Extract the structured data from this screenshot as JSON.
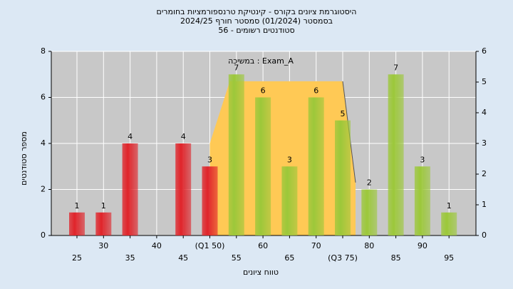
{
  "chart_data": {
    "type": "bar",
    "title": [
      "היסטוגרמת ציונים בקורס - קינטיקת טרנספורמציות בחומרים",
      "בסמסטר  (01/2024)  סמסטר חורף  2024/25",
      "סטודנטים רשומים - 56"
    ],
    "annotation": "במשיכה : Exam_A",
    "x_label": "טווח ציונים",
    "y_label": "מספר סטודנטים",
    "categories": [
      "25",
      "30",
      "35",
      "40",
      "45",
      "(Q1 50)",
      "55",
      "60",
      "65",
      "70",
      "(Q3 75)",
      "80",
      "85",
      "90",
      "95"
    ],
    "values": [
      1,
      1,
      4,
      0,
      4,
      3,
      7,
      6,
      3,
      6,
      5,
      2,
      7,
      3,
      1
    ],
    "colors": [
      "#e0242a",
      "#e0242a",
      "#e0242a",
      "#e0242a",
      "#e0242a",
      "#e0242a",
      "#9cc83a",
      "#9cc83a",
      "#9cc83a",
      "#9cc83a",
      "#9cc83a",
      "#9cc83a",
      "#9cc83a",
      "#9cc83a",
      "#9cc83a"
    ],
    "ylim": [
      0,
      8
    ],
    "yticks": [
      0,
      2,
      4,
      6,
      8
    ],
    "y2lim": [
      0,
      6
    ],
    "y2ticks": [
      0,
      1,
      2,
      3,
      4,
      5,
      6
    ],
    "grid": true
  }
}
